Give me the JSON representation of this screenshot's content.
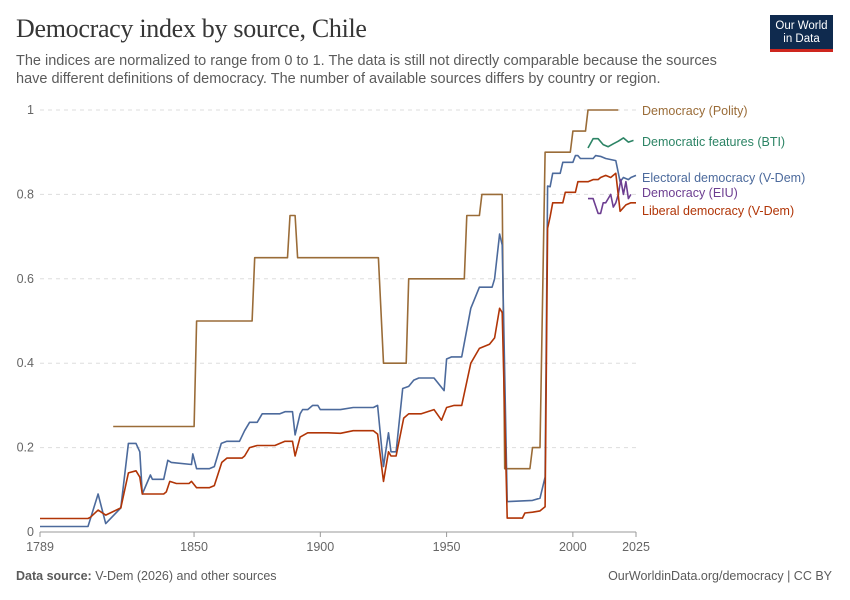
{
  "header": {
    "title": "Democracy index by source, Chile",
    "subtitle": "The indices are normalized to range from 0 to 1. The data is still not directly comparable because the sources have different definitions of democracy. The number of available sources differs by country or region.",
    "logo": "Our World in Data"
  },
  "footer": {
    "source_label": "Data source:",
    "source": " V-Dem (2026) and other sources",
    "credit": "OurWorldinData.org/democracy | CC BY"
  },
  "chart_data": {
    "type": "line",
    "title": "Democracy index by source, Chile",
    "xlabel": "",
    "ylabel": "",
    "xlim": [
      1789,
      2025
    ],
    "ylim": [
      0,
      1
    ],
    "grid": "horizontal dashed",
    "x_ticks": [
      "1789",
      "1850",
      "1900",
      "1950",
      "2000",
      "2025"
    ],
    "y_ticks": [
      "0",
      "0.2",
      "0.4",
      "0.6",
      "0.8",
      "1"
    ],
    "legend": "right, inline labels",
    "series": [
      {
        "name": "Democracy (Polity)",
        "color": "#9a6c38",
        "points": [
          [
            1818,
            0.25
          ],
          [
            1850,
            0.25
          ],
          [
            1851,
            0.5
          ],
          [
            1873,
            0.5
          ],
          [
            1874,
            0.65
          ],
          [
            1887,
            0.65
          ],
          [
            1888,
            0.75
          ],
          [
            1890,
            0.75
          ],
          [
            1891,
            0.65
          ],
          [
            1923,
            0.65
          ],
          [
            1925,
            0.4
          ],
          [
            1934,
            0.4
          ],
          [
            1935,
            0.6
          ],
          [
            1957,
            0.6
          ],
          [
            1958,
            0.75
          ],
          [
            1963,
            0.75
          ],
          [
            1964,
            0.8
          ],
          [
            1972,
            0.8
          ],
          [
            1973,
            0.15
          ],
          [
            1983,
            0.15
          ],
          [
            1984,
            0.2
          ],
          [
            1987,
            0.2
          ],
          [
            1989,
            0.9
          ],
          [
            1999,
            0.9
          ],
          [
            2000,
            0.95
          ],
          [
            2005,
            0.95
          ],
          [
            2006,
            1
          ],
          [
            2018,
            1
          ]
        ]
      },
      {
        "name": "Democratic features (BTI)",
        "color": "#2c8465",
        "points": [
          [
            2006,
            0.91
          ],
          [
            2008,
            0.932
          ],
          [
            2010,
            0.932
          ],
          [
            2012,
            0.918
          ],
          [
            2014,
            0.913
          ],
          [
            2016,
            0.92
          ],
          [
            2018,
            0.926
          ],
          [
            2020,
            0.934
          ],
          [
            2022,
            0.924
          ],
          [
            2024,
            0.928
          ]
        ]
      },
      {
        "name": "Electoral democracy (V-Dem)",
        "color": "#4c6a9c",
        "points": [
          [
            1789,
            0.013
          ],
          [
            1808,
            0.013
          ],
          [
            1812,
            0.09
          ],
          [
            1815,
            0.02
          ],
          [
            1821,
            0.057
          ],
          [
            1824,
            0.21
          ],
          [
            1827,
            0.21
          ],
          [
            1828.5,
            0.19
          ],
          [
            1829.5,
            0.09
          ],
          [
            1832.7,
            0.135
          ],
          [
            1833.5,
            0.125
          ],
          [
            1838,
            0.125
          ],
          [
            1839.6,
            0.17
          ],
          [
            1841,
            0.165
          ],
          [
            1849,
            0.16
          ],
          [
            1849.5,
            0.185
          ],
          [
            1851,
            0.15
          ],
          [
            1856,
            0.15
          ],
          [
            1858,
            0.155
          ],
          [
            1860.8,
            0.21
          ],
          [
            1863,
            0.215
          ],
          [
            1868,
            0.215
          ],
          [
            1870,
            0.24
          ],
          [
            1872,
            0.26
          ],
          [
            1875,
            0.26
          ],
          [
            1877,
            0.28
          ],
          [
            1884,
            0.28
          ],
          [
            1886,
            0.285
          ],
          [
            1889,
            0.285
          ],
          [
            1890,
            0.23
          ],
          [
            1892,
            0.28
          ],
          [
            1893,
            0.29
          ],
          [
            1895,
            0.29
          ],
          [
            1897,
            0.3
          ],
          [
            1899,
            0.3
          ],
          [
            1900,
            0.29
          ],
          [
            1908,
            0.29
          ],
          [
            1913,
            0.295
          ],
          [
            1921,
            0.295
          ],
          [
            1922.7,
            0.3
          ],
          [
            1925,
            0.155
          ],
          [
            1927,
            0.235
          ],
          [
            1928,
            0.19
          ],
          [
            1930,
            0.19
          ],
          [
            1932.6,
            0.34
          ],
          [
            1935,
            0.345
          ],
          [
            1937,
            0.36
          ],
          [
            1939,
            0.365
          ],
          [
            1945,
            0.365
          ],
          [
            1949,
            0.335
          ],
          [
            1950,
            0.41
          ],
          [
            1952,
            0.415
          ],
          [
            1956,
            0.415
          ],
          [
            1959.6,
            0.53
          ],
          [
            1963,
            0.58
          ],
          [
            1968,
            0.58
          ],
          [
            1969,
            0.6
          ],
          [
            1971,
            0.706
          ],
          [
            1972,
            0.68
          ],
          [
            1974,
            0.072
          ],
          [
            1984,
            0.075
          ],
          [
            1987,
            0.08
          ],
          [
            1989,
            0.13
          ],
          [
            1990,
            0.82
          ],
          [
            1991,
            0.818
          ],
          [
            1992,
            0.85
          ],
          [
            1995,
            0.85
          ],
          [
            1996,
            0.876
          ],
          [
            2000,
            0.876
          ],
          [
            2001,
            0.892
          ],
          [
            2002,
            0.892
          ],
          [
            2003,
            0.885
          ],
          [
            2008,
            0.885
          ],
          [
            2009,
            0.892
          ],
          [
            2011,
            0.89
          ],
          [
            2013,
            0.885
          ],
          [
            2017,
            0.88
          ],
          [
            2018.7,
            0.83
          ],
          [
            2020,
            0.84
          ],
          [
            2022,
            0.835
          ],
          [
            2023,
            0.84
          ],
          [
            2025,
            0.845
          ]
        ]
      },
      {
        "name": "Democracy (EIU)",
        "color": "#6d3e91",
        "points": [
          [
            2006,
            0.79
          ],
          [
            2008,
            0.79
          ],
          [
            2010,
            0.755
          ],
          [
            2011,
            0.755
          ],
          [
            2012,
            0.78
          ],
          [
            2013,
            0.78
          ],
          [
            2014,
            0.79
          ],
          [
            2015,
            0.8
          ],
          [
            2016,
            0.77
          ],
          [
            2017,
            0.78
          ],
          [
            2018,
            0.8
          ],
          [
            2019,
            0.835
          ],
          [
            2020,
            0.8
          ],
          [
            2021,
            0.83
          ],
          [
            2022,
            0.79
          ],
          [
            2023,
            0.8
          ]
        ]
      },
      {
        "name": "Liberal democracy (V-Dem)",
        "color": "#b13507",
        "points": [
          [
            1789,
            0.032
          ],
          [
            1808,
            0.032
          ],
          [
            1809,
            0.035
          ],
          [
            1812,
            0.052
          ],
          [
            1815,
            0.04
          ],
          [
            1821,
            0.057
          ],
          [
            1824,
            0.14
          ],
          [
            1827,
            0.145
          ],
          [
            1828.5,
            0.13
          ],
          [
            1829.5,
            0.09
          ],
          [
            1838,
            0.09
          ],
          [
            1839,
            0.095
          ],
          [
            1840.4,
            0.12
          ],
          [
            1843,
            0.115
          ],
          [
            1848,
            0.115
          ],
          [
            1849,
            0.12
          ],
          [
            1851,
            0.105
          ],
          [
            1856,
            0.105
          ],
          [
            1858,
            0.11
          ],
          [
            1861,
            0.165
          ],
          [
            1863,
            0.175
          ],
          [
            1869,
            0.175
          ],
          [
            1870,
            0.18
          ],
          [
            1872,
            0.2
          ],
          [
            1875,
            0.205
          ],
          [
            1882,
            0.205
          ],
          [
            1884,
            0.21
          ],
          [
            1886,
            0.215
          ],
          [
            1889,
            0.215
          ],
          [
            1890,
            0.18
          ],
          [
            1892,
            0.225
          ],
          [
            1895,
            0.235
          ],
          [
            1903,
            0.235
          ],
          [
            1908,
            0.234
          ],
          [
            1913,
            0.24
          ],
          [
            1921,
            0.24
          ],
          [
            1922.7,
            0.232
          ],
          [
            1925,
            0.12
          ],
          [
            1927,
            0.19
          ],
          [
            1928,
            0.18
          ],
          [
            1930,
            0.18
          ],
          [
            1933,
            0.27
          ],
          [
            1935,
            0.28
          ],
          [
            1940,
            0.28
          ],
          [
            1945,
            0.29
          ],
          [
            1948,
            0.265
          ],
          [
            1950,
            0.295
          ],
          [
            1953,
            0.3
          ],
          [
            1956,
            0.3
          ],
          [
            1959.6,
            0.4
          ],
          [
            1963,
            0.435
          ],
          [
            1967,
            0.445
          ],
          [
            1969,
            0.46
          ],
          [
            1971,
            0.53
          ],
          [
            1972,
            0.52
          ],
          [
            1974,
            0.033
          ],
          [
            1980,
            0.033
          ],
          [
            1981,
            0.045
          ],
          [
            1984,
            0.047
          ],
          [
            1987,
            0.05
          ],
          [
            1989,
            0.06
          ],
          [
            1990,
            0.72
          ],
          [
            1991,
            0.747
          ],
          [
            1992,
            0.78
          ],
          [
            1996,
            0.78
          ],
          [
            1997,
            0.805
          ],
          [
            2001,
            0.805
          ],
          [
            2002,
            0.83
          ],
          [
            2006,
            0.83
          ],
          [
            2008,
            0.835
          ],
          [
            2010,
            0.835
          ],
          [
            2011,
            0.84
          ],
          [
            2013,
            0.845
          ],
          [
            2015,
            0.84
          ],
          [
            2017,
            0.85
          ],
          [
            2018.7,
            0.76
          ],
          [
            2021,
            0.775
          ],
          [
            2023,
            0.78
          ],
          [
            2025,
            0.78
          ]
        ]
      }
    ]
  }
}
